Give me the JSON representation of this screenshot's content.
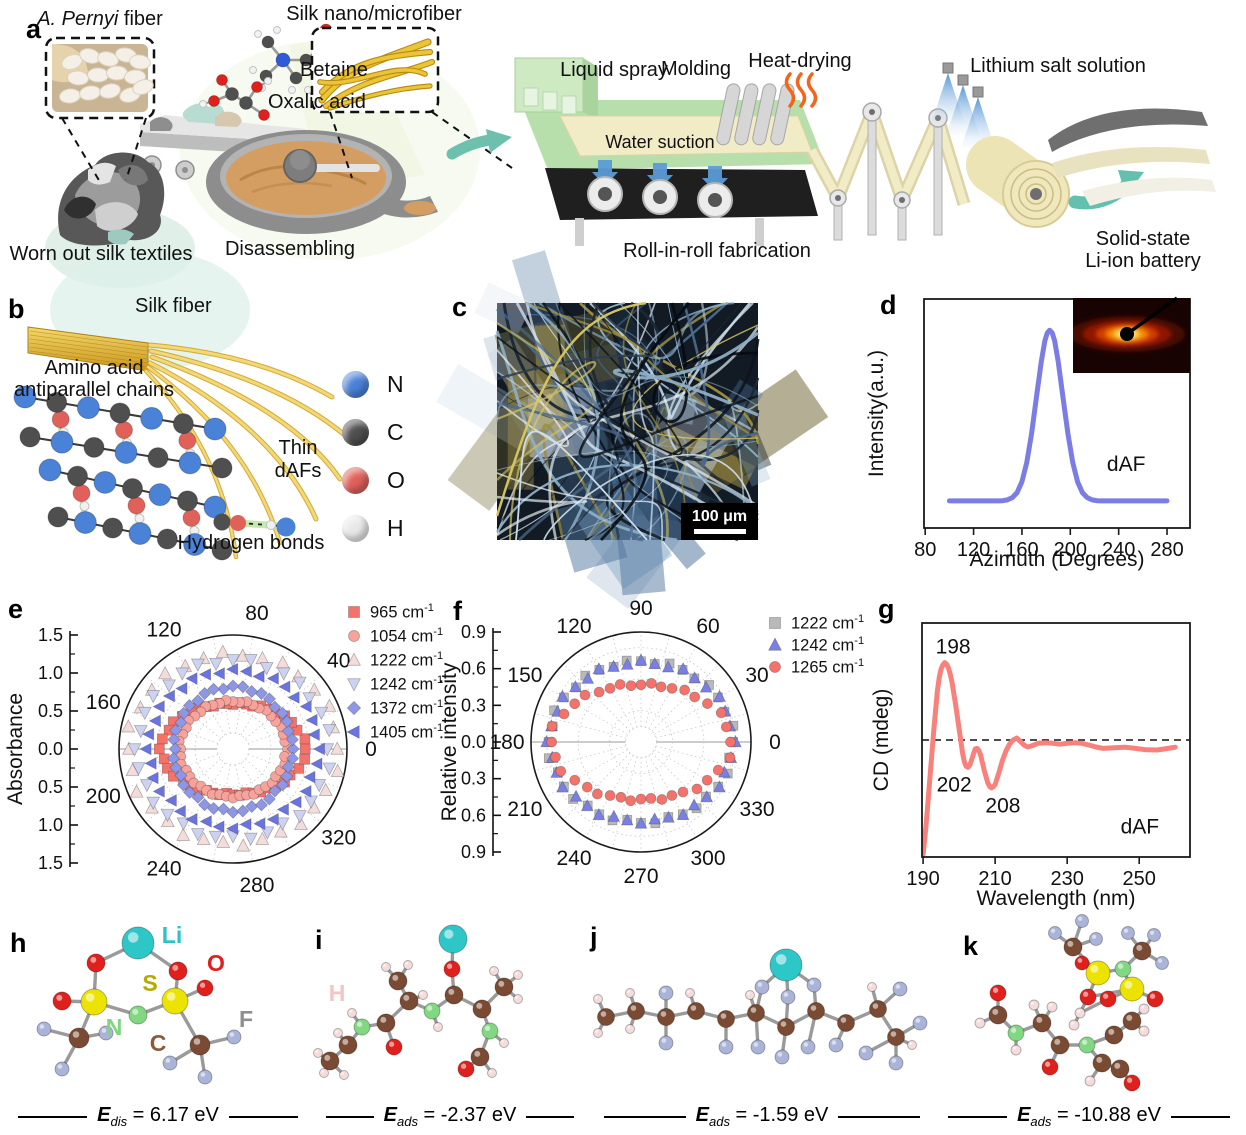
{
  "panel_letters": {
    "a": "a",
    "b": "b",
    "c": "c",
    "d": "d",
    "e": "e",
    "f": "f",
    "g": "g",
    "h": "h",
    "i": "i",
    "j": "j",
    "k": "k"
  },
  "panel_a": {
    "inset1_label_italic": "A. Pernyi",
    "inset1_label_rest": " fiber",
    "betaine": "Betaine",
    "oxalic_acid": "Oxalic acid",
    "inset2_label": "Silk nano/microfiber",
    "liquid_spray": "Liquid spray",
    "molding": "Molding",
    "water_suction": "Water suction",
    "heat_drying": "Heat-drying",
    "lithium_salt": "Lithium salt solution",
    "worn_out": "Worn out silk textiles",
    "disassembling": "Disassembling",
    "roll_in_roll": "Roll-in-roll fabrication",
    "solid_state_line1": "Solid-state",
    "solid_state_line2": "Li-ion battery"
  },
  "panel_b": {
    "silk_fiber": "Silk fiber",
    "amino_line1": "Amino acid",
    "amino_line2": "antiparallel chains",
    "thin_line1": "Thin",
    "thin_line2": "dAFs",
    "hydrogen_bonds": "Hydrogen bonds",
    "legend": [
      {
        "label": "N",
        "color": "#4a82d8"
      },
      {
        "label": "C",
        "color": "#4f4f4f"
      },
      {
        "label": "O",
        "color": "#e0605a"
      },
      {
        "label": "H",
        "color": "#e8e8e8"
      }
    ]
  },
  "panel_c": {
    "scale_label": "100 μm"
  },
  "atom_colors": {
    "li": "#2ec7c7",
    "o": "#e0201c",
    "s": "#ece400",
    "n": "#82d882",
    "c": "#7a4a32",
    "f": "#aab4d8",
    "h": "#f4dcdc"
  },
  "atom_label_colors": {
    "li": "#29c5c5",
    "o": "#e0201c",
    "s": "#b8a800",
    "n": "#7fd67f",
    "c": "#8a5a3a",
    "f": "#8f8f8f",
    "h": "#f0c6c6"
  },
  "panel_h": {
    "atom_labels": [
      "Li",
      "O",
      "S",
      "N",
      "C",
      "F"
    ]
  },
  "panel_i": {
    "atom_labels": [
      "H"
    ]
  },
  "energies": {
    "h": {
      "symbol": "E",
      "sub": "dis",
      "value": "= 6.17 eV"
    },
    "i": {
      "symbol": "E",
      "sub": "ads",
      "value": "= -2.37 eV"
    },
    "j": {
      "symbol": "E",
      "sub": "ads",
      "value": "= -1.59 eV"
    },
    "k": {
      "symbol": "E",
      "sub": "ads",
      "value": "= -10.88 eV"
    }
  },
  "chart_data": [
    {
      "id": "d",
      "type": "line",
      "xlabel": "Azimuth (Degrees)",
      "ylabel": "Intensity(a.u.)",
      "annotations": [
        "dAF"
      ],
      "xlim": [
        79,
        299
      ],
      "ylim": [
        0,
        1.1
      ],
      "xticks": [
        80,
        120,
        160,
        200,
        240,
        280
      ],
      "line_color": "#7b7de4",
      "peak_center_deg": 183,
      "points": [
        [
          100,
          0.13
        ],
        [
          110,
          0.13
        ],
        [
          120,
          0.13
        ],
        [
          130,
          0.13
        ],
        [
          140,
          0.13
        ],
        [
          144,
          0.131
        ],
        [
          148,
          0.135
        ],
        [
          152,
          0.146
        ],
        [
          156,
          0.17
        ],
        [
          160,
          0.222
        ],
        [
          164,
          0.315
        ],
        [
          168,
          0.454
        ],
        [
          172,
          0.627
        ],
        [
          176,
          0.8
        ],
        [
          179,
          0.9
        ],
        [
          181,
          0.937
        ],
        [
          183,
          0.95
        ],
        [
          185,
          0.937
        ],
        [
          187,
          0.9
        ],
        [
          190,
          0.8
        ],
        [
          194,
          0.627
        ],
        [
          198,
          0.454
        ],
        [
          202,
          0.315
        ],
        [
          206,
          0.222
        ],
        [
          210,
          0.17
        ],
        [
          214,
          0.146
        ],
        [
          218,
          0.135
        ],
        [
          222,
          0.131
        ],
        [
          226,
          0.13
        ],
        [
          232,
          0.13
        ],
        [
          240,
          0.13
        ],
        [
          250,
          0.13
        ],
        [
          260,
          0.13
        ],
        [
          270,
          0.13
        ],
        [
          280,
          0.13
        ]
      ],
      "inset": "2D X-ray diffraction pattern with equatorial streak and beamstop"
    },
    {
      "id": "e",
      "type": "polar-scatter",
      "ylabel": "Absorbance",
      "rmax": 1.5,
      "rticks": [
        "1.5",
        "1.0",
        "0.5",
        "0.0",
        "0.5",
        "1.0",
        "1.5"
      ],
      "grid_r": [
        0.5,
        1.0
      ],
      "angle_labels": [
        0,
        40,
        80,
        120,
        160,
        200,
        240,
        280,
        320
      ],
      "spoke_step": 20,
      "series": [
        {
          "label": "965",
          "unit": "cm",
          "sup": "-1",
          "marker": "square",
          "color": "#f4726a",
          "r0": 0.95,
          "r90": 0.6,
          "n": 44,
          "size": 10
        },
        {
          "label": "1054",
          "unit": "cm",
          "sup": "-1",
          "marker": "circle",
          "color": "#f8a29c",
          "r0": 0.7,
          "r90": 0.63,
          "n": 44,
          "size": 10
        },
        {
          "label": "1222",
          "unit": "cm",
          "sup": "-1",
          "marker": "triangle-up",
          "color": "#f3dcda",
          "r0": 1.38,
          "r90": 1.25,
          "n": 30,
          "size": 11
        },
        {
          "label": "1242",
          "unit": "cm",
          "sup": "-1",
          "marker": "triangle-down",
          "color": "#cdd2f0",
          "r0": 1.27,
          "r90": 1.17,
          "n": 32,
          "size": 11
        },
        {
          "label": "1372",
          "unit": "cm",
          "sup": "-1",
          "marker": "diamond",
          "color": "#8e96e8",
          "r0": 0.78,
          "r90": 0.82,
          "n": 40,
          "size": 10
        },
        {
          "label": "1405",
          "unit": "cm",
          "sup": "-1",
          "marker": "triangle-left",
          "color": "#6a73e2",
          "r0": 1.12,
          "r90": 1.03,
          "n": 36,
          "size": 10
        }
      ]
    },
    {
      "id": "f",
      "type": "polar-scatter",
      "ylabel": "Relative intensity",
      "rmax": 1.05,
      "rticks": [
        "0.9",
        "0.6",
        "0.3",
        "0.0",
        "0.3",
        "0.6",
        "0.9"
      ],
      "grid_r": [
        0.3,
        0.6,
        0.9
      ],
      "angle_labels": [
        0,
        30,
        60,
        90,
        120,
        150,
        180,
        210,
        240,
        270,
        300,
        330
      ],
      "spoke_step": 15,
      "series": [
        {
          "label": "1222",
          "unit": "cm",
          "sup": "-1",
          "marker": "square",
          "color": "#b9b9b9",
          "r0": 0.88,
          "r90": 0.77,
          "n": 36,
          "size": 9
        },
        {
          "label": "1242",
          "unit": "cm",
          "sup": "-1",
          "marker": "triangle-up",
          "color": "#7880e6",
          "r0": 0.88,
          "r90": 0.76,
          "n": 36,
          "size": 10
        },
        {
          "label": "1265",
          "unit": "cm",
          "sup": "-1",
          "marker": "circle",
          "color": "#f4726a",
          "r0": 0.86,
          "r90": 0.55,
          "n": 36,
          "size": 10
        }
      ]
    },
    {
      "id": "g",
      "type": "line",
      "xlabel": "Wavelength (nm)",
      "ylabel": "CD (mdeg)",
      "annotations": [
        "198",
        "202",
        "208",
        "dAF"
      ],
      "xlim": [
        189.7,
        264.1
      ],
      "ylim": [
        -4.2,
        4.2
      ],
      "xticks": [
        190,
        210,
        230,
        250
      ],
      "zero_line": true,
      "line_color": "#f8817c",
      "points": [
        [
          190,
          -4.1
        ],
        [
          190.5,
          -3.5
        ],
        [
          191,
          -2.8
        ],
        [
          191.5,
          -2.0
        ],
        [
          192,
          -1.2
        ],
        [
          192.5,
          -0.4
        ],
        [
          193,
          0.4
        ],
        [
          193.5,
          1.1
        ],
        [
          194,
          1.8
        ],
        [
          194.5,
          2.25
        ],
        [
          195,
          2.55
        ],
        [
          195.5,
          2.7
        ],
        [
          196,
          2.78
        ],
        [
          196.5,
          2.72
        ],
        [
          197,
          2.6
        ],
        [
          197.5,
          2.38
        ],
        [
          198,
          2.1
        ],
        [
          199,
          1.3
        ],
        [
          200,
          0.4
        ],
        [
          201,
          -0.5
        ],
        [
          201.5,
          -0.8
        ],
        [
          202,
          -0.95
        ],
        [
          202.5,
          -0.98
        ],
        [
          203,
          -0.9
        ],
        [
          204,
          -0.5
        ],
        [
          204.5,
          -0.32
        ],
        [
          205,
          -0.3
        ],
        [
          205.5,
          -0.38
        ],
        [
          206,
          -0.55
        ],
        [
          207,
          -1.1
        ],
        [
          208,
          -1.55
        ],
        [
          208.5,
          -1.67
        ],
        [
          209,
          -1.72
        ],
        [
          209.5,
          -1.68
        ],
        [
          210,
          -1.6
        ],
        [
          211,
          -1.2
        ],
        [
          212,
          -0.75
        ],
        [
          213,
          -0.4
        ],
        [
          214,
          -0.15
        ],
        [
          215,
          0.0
        ],
        [
          216,
          0.07
        ],
        [
          217,
          -0.05
        ],
        [
          218,
          -0.18
        ],
        [
          219,
          -0.25
        ],
        [
          220,
          -0.22
        ],
        [
          222,
          -0.12
        ],
        [
          224,
          -0.1
        ],
        [
          226,
          -0.12
        ],
        [
          228,
          -0.15
        ],
        [
          230,
          -0.12
        ],
        [
          232,
          -0.1
        ],
        [
          234,
          -0.12
        ],
        [
          236,
          -0.18
        ],
        [
          238,
          -0.25
        ],
        [
          240,
          -0.3
        ],
        [
          243,
          -0.28
        ],
        [
          246,
          -0.26
        ],
        [
          249,
          -0.3
        ],
        [
          252,
          -0.35
        ],
        [
          255,
          -0.36
        ],
        [
          258,
          -0.3
        ],
        [
          260,
          -0.26
        ]
      ]
    }
  ]
}
